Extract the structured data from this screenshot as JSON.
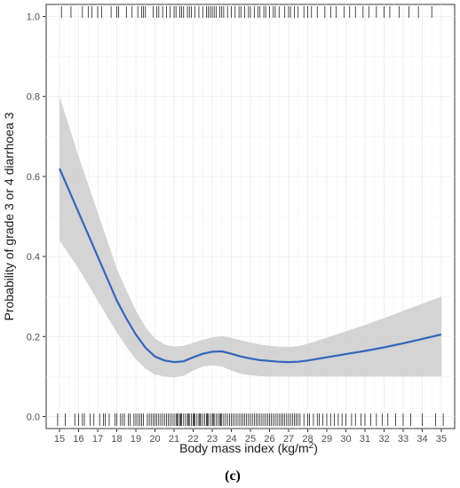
{
  "chart_data": {
    "type": "line",
    "title": "",
    "xlabel_main": "Body mass index (kg/m",
    "xlabel_sup": "2",
    "xlabel_close": ")",
    "ylabel": "Probability of grade  3 or 4 diarrhoea   3",
    "panel_label": "(c)",
    "xlim": [
      14.3,
      35.7
    ],
    "ylim": [
      -0.03,
      1.03
    ],
    "x_ticks": [
      15,
      16,
      17,
      18,
      19,
      20,
      21,
      22,
      23,
      24,
      25,
      26,
      27,
      28,
      29,
      30,
      31,
      32,
      33,
      34,
      35
    ],
    "x_tick_labels": [
      "15",
      "16",
      "17",
      "18",
      "19",
      "20",
      "21",
      "22",
      "23",
      "24",
      "25",
      "26",
      "27",
      "28",
      "29",
      "30",
      "31",
      "32",
      "33",
      "34",
      "35"
    ],
    "y_ticks": [
      0.0,
      0.2,
      0.4,
      0.6,
      0.8,
      1.0
    ],
    "y_tick_labels": [
      "0.0",
      "0.2",
      "0.4",
      "0.6",
      "0.8",
      "1.0"
    ],
    "grid": true,
    "colors": {
      "line": "#3366bb",
      "band": "#cccccc",
      "grid": "#ebebeb",
      "rug": "#000000",
      "axis": "#333333"
    },
    "series": [
      {
        "x": [
          15,
          15.5,
          16,
          16.5,
          17,
          17.5,
          18,
          18.5,
          19,
          19.5,
          20,
          20.5,
          21,
          21.5,
          22,
          22.5,
          23,
          23.5,
          24,
          24.5,
          25,
          25.5,
          26,
          26.5,
          27,
          27.5,
          28,
          29,
          30,
          31,
          32,
          33,
          34,
          35
        ],
        "y": [
          0.62,
          0.565,
          0.51,
          0.455,
          0.4,
          0.345,
          0.29,
          0.245,
          0.205,
          0.172,
          0.15,
          0.14,
          0.136,
          0.138,
          0.148,
          0.157,
          0.162,
          0.163,
          0.157,
          0.15,
          0.145,
          0.141,
          0.139,
          0.137,
          0.136,
          0.137,
          0.14,
          0.148,
          0.156,
          0.164,
          0.173,
          0.183,
          0.194,
          0.205
        ],
        "lower": [
          0.44,
          0.405,
          0.37,
          0.33,
          0.29,
          0.25,
          0.21,
          0.175,
          0.143,
          0.12,
          0.105,
          0.1,
          0.098,
          0.102,
          0.115,
          0.125,
          0.128,
          0.125,
          0.115,
          0.107,
          0.103,
          0.101,
          0.1,
          0.1,
          0.1,
          0.1,
          0.1,
          0.1,
          0.1,
          0.1,
          0.1,
          0.1,
          0.1,
          0.1
        ],
        "upper": [
          0.8,
          0.725,
          0.65,
          0.58,
          0.51,
          0.44,
          0.37,
          0.315,
          0.265,
          0.224,
          0.195,
          0.18,
          0.175,
          0.177,
          0.184,
          0.192,
          0.198,
          0.201,
          0.197,
          0.19,
          0.185,
          0.18,
          0.177,
          0.175,
          0.174,
          0.176,
          0.182,
          0.197,
          0.213,
          0.229,
          0.246,
          0.264,
          0.282,
          0.3
        ]
      }
    ],
    "rug_top_x": [
      15.1,
      15.6,
      16.2,
      16.5,
      16.7,
      17.0,
      17.2,
      17.7,
      18.0,
      18.1,
      18.5,
      18.8,
      19.1,
      19.3,
      19.4,
      19.5,
      19.9,
      20.1,
      20.2,
      20.4,
      20.6,
      20.8,
      21.0,
      21.1,
      21.3,
      21.4,
      21.5,
      21.7,
      21.8,
      21.9,
      22.1,
      22.3,
      22.5,
      22.7,
      22.8,
      22.9,
      23.0,
      23.1,
      23.2,
      23.4,
      23.5,
      23.6,
      23.8,
      24.0,
      24.2,
      24.4,
      24.5,
      24.7,
      24.9,
      25.0,
      25.2,
      25.4,
      25.5,
      25.7,
      25.8,
      26.0,
      26.2,
      26.3,
      26.5,
      26.8,
      27.0,
      27.1,
      27.3,
      27.5,
      27.8,
      28.0,
      28.2,
      28.5,
      28.9,
      29.2,
      29.5,
      29.9,
      30.2,
      30.5,
      30.9,
      31.2,
      31.6,
      32.0,
      32.3,
      32.8,
      33.3,
      33.8,
      34.5
    ],
    "rug_bottom_x": [
      14.9,
      15.3,
      15.8,
      16.0,
      16.2,
      16.3,
      16.6,
      16.8,
      17.1,
      17.3,
      17.4,
      17.6,
      17.9,
      18.0,
      18.2,
      18.3,
      18.4,
      18.6,
      18.7,
      18.9,
      19.0,
      19.1,
      19.2,
      19.3,
      19.4,
      19.6,
      19.7,
      19.8,
      19.9,
      20.0,
      20.1,
      20.2,
      20.3,
      20.4,
      20.5,
      20.6,
      20.7,
      20.8,
      20.9,
      21.0,
      21.1,
      21.15,
      21.2,
      21.3,
      21.35,
      21.4,
      21.5,
      21.6,
      21.7,
      21.75,
      21.8,
      21.9,
      22.0,
      22.05,
      22.1,
      22.2,
      22.3,
      22.35,
      22.4,
      22.5,
      22.6,
      22.7,
      22.75,
      22.8,
      22.9,
      23.0,
      23.05,
      23.1,
      23.2,
      23.3,
      23.4,
      23.45,
      23.5,
      23.6,
      23.7,
      23.8,
      23.9,
      24.0,
      24.1,
      24.2,
      24.3,
      24.4,
      24.5,
      24.6,
      24.7,
      24.8,
      24.9,
      25.0,
      25.1,
      25.2,
      25.3,
      25.4,
      25.5,
      25.6,
      25.7,
      25.8,
      25.9,
      26.0,
      26.1,
      26.2,
      26.3,
      26.4,
      26.5,
      26.6,
      26.7,
      26.8,
      26.9,
      27.0,
      27.1,
      27.2,
      27.3,
      27.4,
      27.5,
      27.6,
      27.8,
      28.0,
      28.1,
      28.3,
      28.5,
      28.6,
      28.8,
      29.0,
      29.2,
      29.4,
      29.6,
      29.8,
      30.0,
      30.3,
      30.5,
      30.8,
      31.0,
      31.3,
      31.6,
      31.9,
      32.2,
      32.6,
      33.0,
      33.4,
      34.0,
      34.7,
      35.1
    ]
  }
}
